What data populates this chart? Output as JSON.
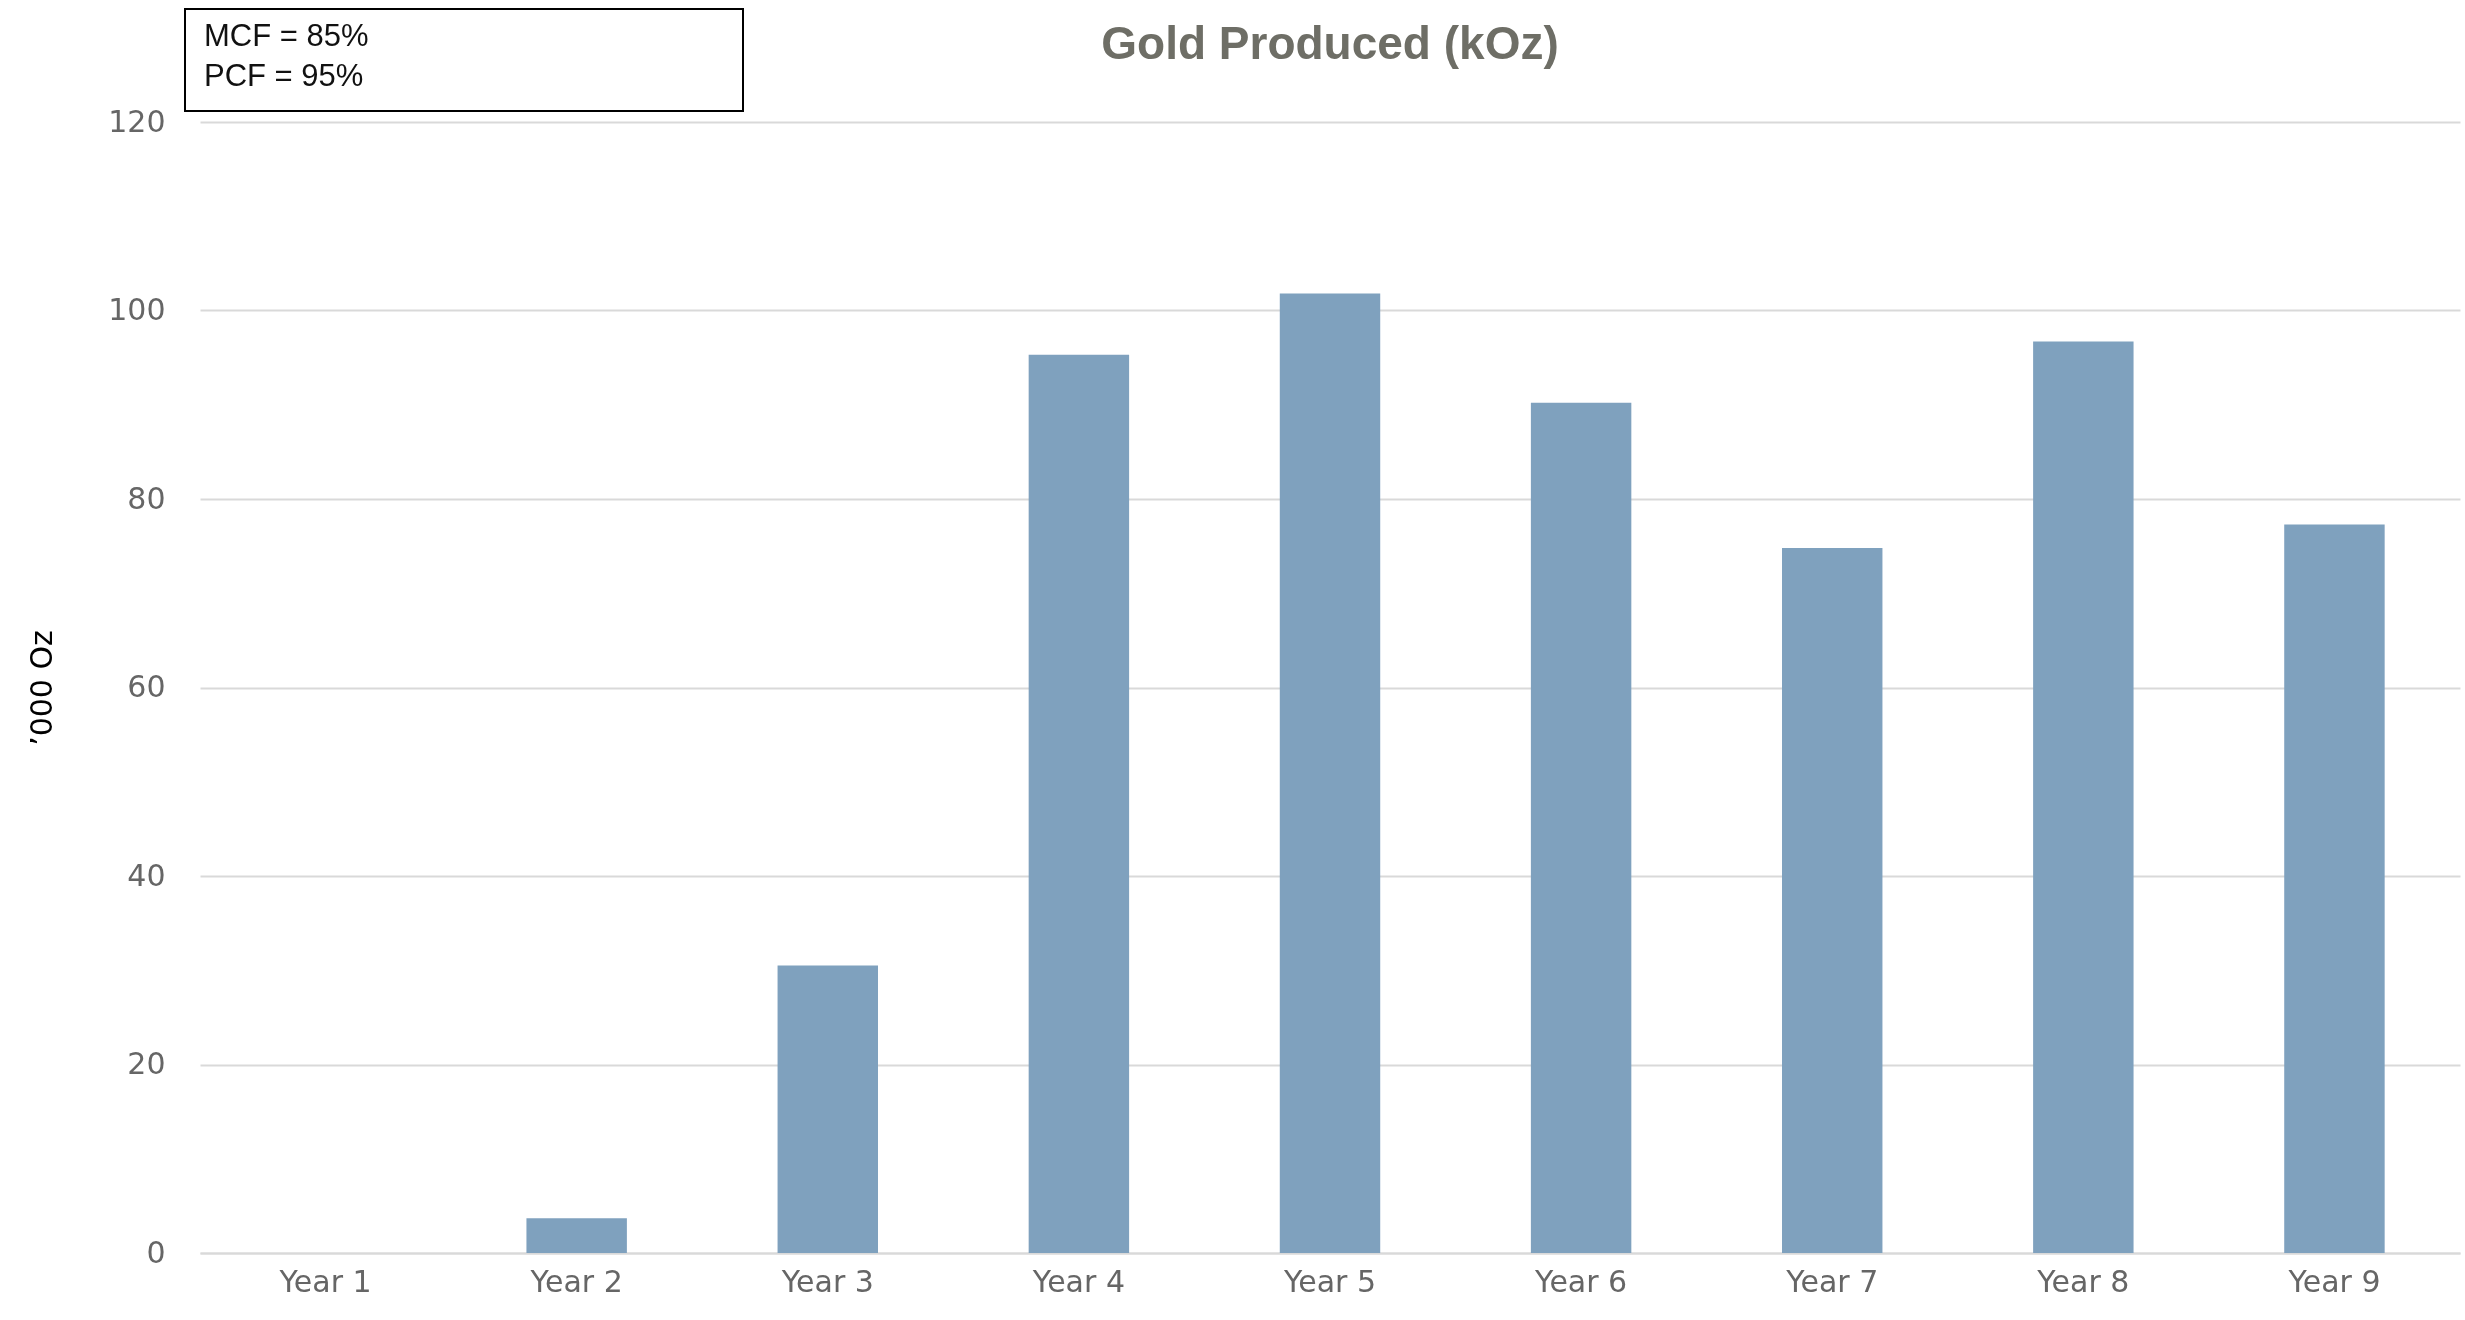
{
  "chart_data": {
    "type": "bar",
    "title": "Gold Produced (kOz)",
    "ylabel": "’000 Oz",
    "categories": [
      "Year 1",
      "Year 2",
      "Year 3",
      "Year 4",
      "Year 5",
      "Year 6",
      "Year 7",
      "Year 8",
      "Year 9"
    ],
    "values": [
      0,
      3.7,
      30.5,
      95.3,
      101.8,
      90.2,
      74.8,
      96.7,
      77.3
    ],
    "color": "#7fa1be",
    "ylim": [
      0,
      120
    ],
    "yticks": [
      0,
      20,
      40,
      60,
      80,
      100,
      120
    ],
    "grid": "y",
    "annotations": [
      "MCF = 85%",
      "PCF = 95%"
    ]
  }
}
